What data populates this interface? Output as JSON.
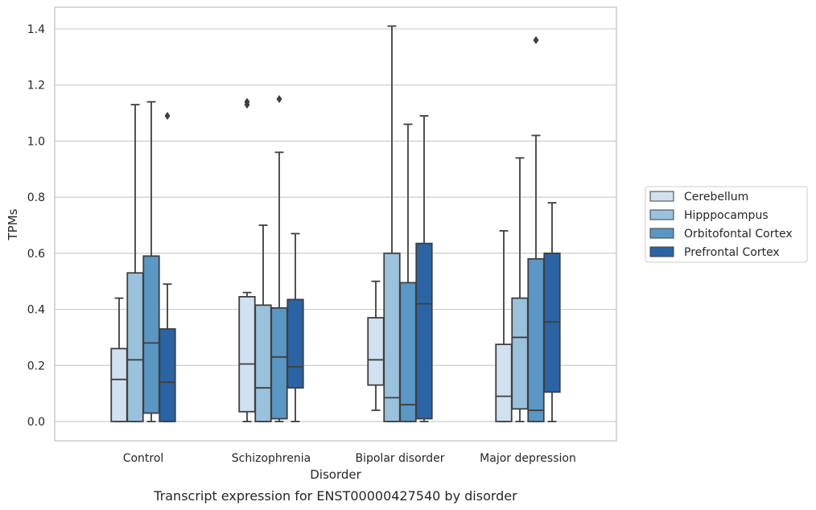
{
  "chart_data": {
    "type": "box",
    "title": "",
    "caption": "Transcript expression for ENST00000427540 by disorder",
    "xlabel": "Disorder",
    "ylabel": "TPMs",
    "ylim": [
      -0.07,
      1.48
    ],
    "yticks": [
      0.0,
      0.2,
      0.4,
      0.6,
      0.8,
      1.0,
      1.2,
      1.4
    ],
    "ytick_labels": [
      "0.0",
      "0.2",
      "0.4",
      "0.6",
      "0.8",
      "1.0",
      "1.2",
      "1.4"
    ],
    "grid": true,
    "legend_position": "right",
    "categories": [
      "Control",
      "Schizophrenia",
      "Bipolar disorder",
      "Major depression"
    ],
    "series": [
      {
        "name": "Cerebellum",
        "color": "#d1e1f0",
        "boxes": [
          {
            "whislo": 0.0,
            "q1": 0.0,
            "med": 0.15,
            "q3": 0.26,
            "whishi": 0.44,
            "fliers": []
          },
          {
            "whislo": 0.0,
            "q1": 0.035,
            "med": 0.205,
            "q3": 0.445,
            "whishi": 0.46,
            "fliers": [
              1.13,
              1.14
            ]
          },
          {
            "whislo": 0.04,
            "q1": 0.13,
            "med": 0.22,
            "q3": 0.37,
            "whishi": 0.5,
            "fliers": []
          },
          {
            "whislo": 0.0,
            "q1": 0.0,
            "med": 0.09,
            "q3": 0.275,
            "whishi": 0.68,
            "fliers": []
          }
        ]
      },
      {
        "name": "Hipppocampus",
        "color": "#9ac2dc",
        "boxes": [
          {
            "whislo": 0.0,
            "q1": 0.0,
            "med": 0.22,
            "q3": 0.53,
            "whishi": 1.13,
            "fliers": []
          },
          {
            "whislo": 0.0,
            "q1": 0.0,
            "med": 0.12,
            "q3": 0.415,
            "whishi": 0.7,
            "fliers": []
          },
          {
            "whislo": 0.0,
            "q1": 0.0,
            "med": 0.085,
            "q3": 0.6,
            "whishi": 1.41,
            "fliers": []
          },
          {
            "whislo": 0.0,
            "q1": 0.045,
            "med": 0.3,
            "q3": 0.44,
            "whishi": 0.94,
            "fliers": []
          }
        ]
      },
      {
        "name": "Orbitofontal Cortex",
        "color": "#5a97c5",
        "boxes": [
          {
            "whislo": 0.0,
            "q1": 0.03,
            "med": 0.28,
            "q3": 0.59,
            "whishi": 1.14,
            "fliers": []
          },
          {
            "whislo": 0.0,
            "q1": 0.01,
            "med": 0.23,
            "q3": 0.405,
            "whishi": 0.96,
            "fliers": [
              1.15
            ]
          },
          {
            "whislo": 0.0,
            "q1": 0.0,
            "med": 0.06,
            "q3": 0.495,
            "whishi": 1.06,
            "fliers": []
          },
          {
            "whislo": 0.0,
            "q1": 0.0,
            "med": 0.04,
            "q3": 0.58,
            "whishi": 1.02,
            "fliers": [
              1.36
            ]
          }
        ]
      },
      {
        "name": "Prefrontal Cortex",
        "color": "#2a64a4",
        "boxes": [
          {
            "whislo": 0.0,
            "q1": 0.0,
            "med": 0.14,
            "q3": 0.33,
            "whishi": 0.49,
            "fliers": [
              1.09
            ]
          },
          {
            "whislo": 0.0,
            "q1": 0.12,
            "med": 0.195,
            "q3": 0.435,
            "whishi": 0.67,
            "fliers": []
          },
          {
            "whislo": 0.0,
            "q1": 0.01,
            "med": 0.42,
            "q3": 0.635,
            "whishi": 1.09,
            "fliers": []
          },
          {
            "whislo": 0.0,
            "q1": 0.105,
            "med": 0.355,
            "q3": 0.6,
            "whishi": 0.78,
            "fliers": []
          }
        ]
      }
    ]
  }
}
